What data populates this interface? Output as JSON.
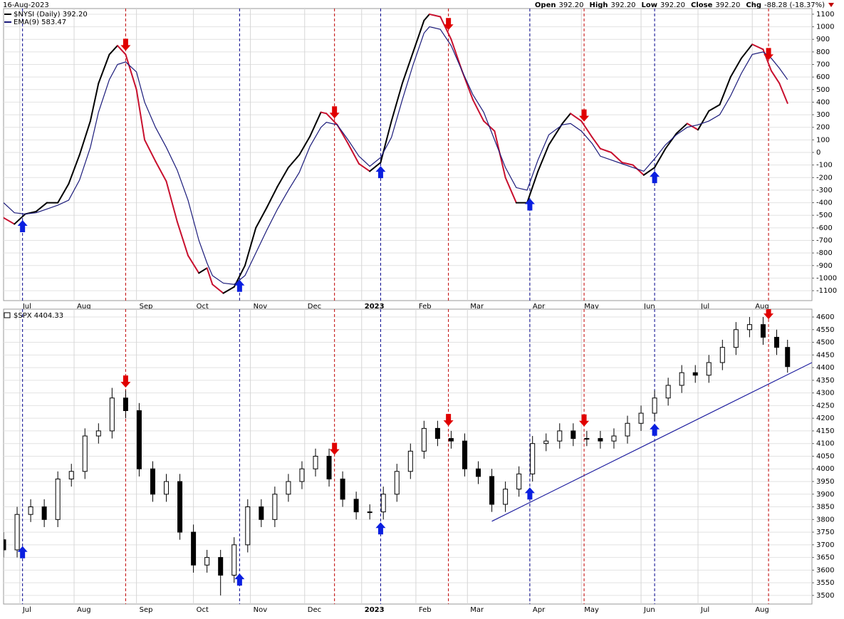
{
  "header": {
    "date": "16-Aug-2023",
    "quote": [
      {
        "label": "Open",
        "value": "392.20"
      },
      {
        "label": "High",
        "value": "392.20"
      },
      {
        "label": "Low",
        "value": "392.20"
      },
      {
        "label": "Close",
        "value": "392.20"
      },
      {
        "label": "Chg",
        "value": "-88.28 (-18.37%)"
      }
    ]
  },
  "signals": {
    "buy": [
      7,
      87,
      139,
      194,
      240
    ],
    "sell": [
      45,
      122,
      164,
      214,
      282
    ],
    "buy_color": "#0a1fe0",
    "sell_color": "#e00000",
    "buy_line_color": "#00008b",
    "sell_line_color": "#c00000"
  },
  "chart_data": [
    {
      "type": "line",
      "xlim": [
        0,
        298
      ],
      "xticks": [
        {
          "value": 6,
          "label": "Jul"
        },
        {
          "value": 26,
          "label": "Aug"
        },
        {
          "value": 49,
          "label": "Sep"
        },
        {
          "value": 70,
          "label": "Oct"
        },
        {
          "value": 91,
          "label": "Nov"
        },
        {
          "value": 111,
          "label": "Dec"
        },
        {
          "value": 132,
          "label": "2023"
        },
        {
          "value": 152,
          "label": "Feb"
        },
        {
          "value": 171,
          "label": "Mar"
        },
        {
          "value": 194,
          "label": "Apr"
        },
        {
          "value": 213,
          "label": "May"
        },
        {
          "value": 235,
          "label": "Jun"
        },
        {
          "value": 256,
          "label": "Jul"
        },
        {
          "value": 276,
          "label": "Aug"
        }
      ],
      "ylim": [
        -1179,
        1145
      ],
      "yticks": [
        -1100,
        -1000,
        -900,
        -800,
        -700,
        -600,
        -500,
        -400,
        -300,
        -200,
        -100,
        0,
        100,
        200,
        300,
        400,
        500,
        600,
        700,
        800,
        900,
        1000,
        1100
      ],
      "grid": true,
      "x": [
        0,
        4,
        8,
        12,
        16,
        20,
        24,
        28,
        32,
        35,
        39,
        42,
        45,
        49,
        52,
        56,
        60,
        64,
        68,
        72,
        75,
        77,
        81,
        85,
        89,
        93,
        97,
        101,
        105,
        109,
        113,
        117,
        119,
        123,
        127,
        131,
        135,
        139,
        143,
        147,
        151,
        155,
        157,
        161,
        165,
        169,
        173,
        177,
        181,
        185,
        189,
        193,
        197,
        201,
        206,
        209,
        213,
        217,
        220,
        224,
        228,
        232,
        236,
        240,
        244,
        248,
        252,
        256,
        260,
        264,
        268,
        272,
        276,
        280,
        283,
        286,
        289
      ],
      "series": [
        {
          "name": "$NYSI (Daily) 392.20",
          "color": "#000000",
          "down_color": "#c8102e",
          "values": [
            -520,
            -570,
            -490,
            -470,
            -400,
            -400,
            -250,
            -20,
            250,
            550,
            780,
            850,
            780,
            500,
            100,
            -70,
            -230,
            -550,
            -820,
            -960,
            -920,
            -1050,
            -1120,
            -1070,
            -900,
            -600,
            -440,
            -270,
            -120,
            -20,
            130,
            320,
            310,
            220,
            70,
            -90,
            -150,
            -80,
            250,
            550,
            800,
            1050,
            1100,
            1080,
            900,
            650,
            420,
            250,
            170,
            -200,
            -400,
            -400,
            -150,
            60,
            230,
            310,
            250,
            120,
            30,
            0,
            -80,
            -100,
            -180,
            -120,
            30,
            150,
            230,
            180,
            330,
            380,
            600,
            750,
            860,
            820,
            650,
            550,
            392
          ]
        },
        {
          "name": "EMA(9) 583.47",
          "color": "#1a1a7a",
          "values": [
            -400,
            -480,
            -490,
            -480,
            -450,
            -420,
            -380,
            -220,
            40,
            320,
            580,
            700,
            720,
            640,
            400,
            200,
            40,
            -140,
            -380,
            -700,
            -880,
            -980,
            -1040,
            -1050,
            -980,
            -800,
            -620,
            -450,
            -300,
            -160,
            50,
            200,
            240,
            220,
            100,
            -30,
            -110,
            -40,
            120,
            420,
            700,
            950,
            1000,
            980,
            850,
            650,
            460,
            320,
            100,
            -120,
            -280,
            -300,
            -60,
            140,
            220,
            230,
            170,
            70,
            -30,
            -60,
            -90,
            -120,
            -150,
            -50,
            60,
            140,
            200,
            220,
            250,
            300,
            450,
            630,
            780,
            800,
            750,
            670,
            580
          ]
        }
      ]
    },
    {
      "type": "candlestick",
      "title": "$SPX 4404.33",
      "up_color": "#ffffff",
      "down_color": "#000000",
      "color": "#000000",
      "xlim": [
        0,
        298
      ],
      "xticks": [
        {
          "value": 6,
          "label": "Jul"
        },
        {
          "value": 26,
          "label": "Aug"
        },
        {
          "value": 49,
          "label": "Sep"
        },
        {
          "value": 70,
          "label": "Oct"
        },
        {
          "value": 91,
          "label": "Nov"
        },
        {
          "value": 111,
          "label": "Dec"
        },
        {
          "value": 132,
          "label": "2023"
        },
        {
          "value": 152,
          "label": "Feb"
        },
        {
          "value": 171,
          "label": "Mar"
        },
        {
          "value": 194,
          "label": "Apr"
        },
        {
          "value": 213,
          "label": "May"
        },
        {
          "value": 235,
          "label": "Jun"
        },
        {
          "value": 256,
          "label": "Jul"
        },
        {
          "value": 276,
          "label": "Aug"
        }
      ],
      "ylim": [
        3466,
        4631
      ],
      "yticks": [
        3500,
        3550,
        3600,
        3650,
        3700,
        3750,
        3800,
        3850,
        3900,
        3950,
        4000,
        4050,
        4100,
        4150,
        4200,
        4250,
        4300,
        4350,
        4400,
        4450,
        4500,
        4550,
        4600
      ],
      "grid": true,
      "x": [
        0,
        5,
        10,
        15,
        20,
        25,
        30,
        35,
        40,
        45,
        50,
        55,
        60,
        65,
        70,
        75,
        80,
        85,
        90,
        95,
        100,
        105,
        110,
        115,
        120,
        125,
        130,
        135,
        140,
        145,
        150,
        155,
        160,
        165,
        170,
        175,
        180,
        185,
        190,
        195,
        200,
        205,
        210,
        215,
        220,
        225,
        230,
        235,
        240,
        245,
        250,
        255,
        260,
        265,
        270,
        275,
        280,
        285,
        289
      ],
      "open": [
        3720,
        3680,
        3820,
        3850,
        3800,
        3960,
        3990,
        4130,
        4150,
        4280,
        4230,
        4000,
        3900,
        3950,
        3750,
        3620,
        3650,
        3580,
        3700,
        3850,
        3800,
        3900,
        3950,
        4000,
        4050,
        3960,
        3880,
        3830,
        3830,
        3900,
        3990,
        4070,
        4160,
        4120,
        4110,
        4000,
        3970,
        3860,
        3920,
        3980,
        4100,
        4110,
        4150,
        4120,
        4120,
        4110,
        4130,
        4180,
        4220,
        4280,
        4330,
        4380,
        4370,
        4420,
        4480,
        4550,
        4570,
        4520,
        4480
      ],
      "high": [
        3750,
        3850,
        3880,
        3880,
        3990,
        4020,
        4160,
        4180,
        4320,
        4310,
        4260,
        4030,
        3980,
        3980,
        3780,
        3680,
        3680,
        3730,
        3880,
        3880,
        3930,
        3980,
        4030,
        4080,
        4080,
        3990,
        3910,
        3860,
        3930,
        4020,
        4100,
        4190,
        4190,
        4150,
        4140,
        4030,
        4000,
        3950,
        4010,
        4130,
        4140,
        4180,
        4180,
        4150,
        4150,
        4160,
        4210,
        4250,
        4310,
        4360,
        4410,
        4410,
        4450,
        4510,
        4580,
        4600,
        4600,
        4550,
        4510
      ],
      "low": [
        3650,
        3650,
        3790,
        3770,
        3770,
        3930,
        3960,
        4100,
        4120,
        4200,
        3970,
        3870,
        3870,
        3720,
        3590,
        3590,
        3500,
        3550,
        3670,
        3770,
        3770,
        3870,
        3920,
        3970,
        3930,
        3850,
        3800,
        3800,
        3800,
        3870,
        3960,
        4040,
        4090,
        4080,
        3970,
        3940,
        3830,
        3830,
        3890,
        3950,
        4070,
        4080,
        4090,
        4090,
        4080,
        4080,
        4100,
        4150,
        4190,
        4250,
        4300,
        4340,
        4340,
        4390,
        4450,
        4520,
        4490,
        4450,
        4380
      ],
      "close": [
        3680,
        3820,
        3850,
        3800,
        3960,
        3990,
        4130,
        4150,
        4280,
        4230,
        4000,
        3900,
        3950,
        3750,
        3620,
        3650,
        3580,
        3700,
        3850,
        3800,
        3900,
        3950,
        4000,
        4050,
        3960,
        3880,
        3830,
        3830,
        3900,
        3990,
        4070,
        4160,
        4120,
        4110,
        4000,
        3970,
        3860,
        3920,
        3980,
        4100,
        4110,
        4150,
        4120,
        4120,
        4110,
        4130,
        4180,
        4220,
        4280,
        4330,
        4380,
        4370,
        4420,
        4480,
        4550,
        4570,
        4520,
        4480,
        4404
      ],
      "trendline": {
        "x": [
          180,
          298
        ],
        "values": [
          3793,
          4420
        ],
        "color": "#2020a0"
      }
    }
  ]
}
